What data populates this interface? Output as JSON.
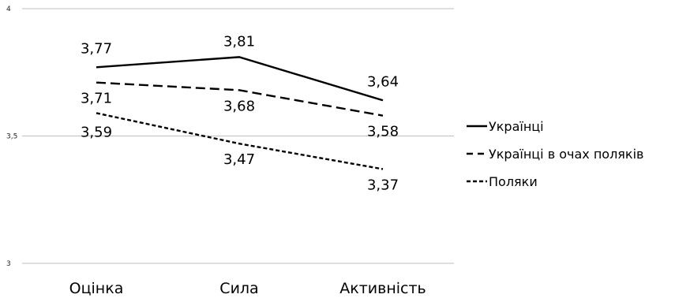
{
  "chart_data": {
    "type": "line",
    "categories": [
      "Оцінка",
      "Сила",
      "Активність"
    ],
    "series": [
      {
        "name": "Українці",
        "values": [
          3.77,
          3.81,
          3.64
        ],
        "labels": [
          "3,77",
          "3,81",
          "3,64"
        ],
        "dash": "solid"
      },
      {
        "name": "Українці в очах поляків",
        "values": [
          3.71,
          3.68,
          3.58
        ],
        "labels": [
          "3,71",
          "3,68",
          "3,58"
        ],
        "dash": "dashed"
      },
      {
        "name": "Поляки",
        "values": [
          3.59,
          3.47,
          3.37
        ],
        "labels": [
          "3,59",
          "3,47",
          "3,37"
        ],
        "dash": "dotted"
      }
    ],
    "ylim": [
      3,
      4
    ],
    "yticks": [
      {
        "value": 4,
        "label": "4"
      },
      {
        "value": 3.5,
        "label": "3,5"
      },
      {
        "value": 3,
        "label": "3"
      }
    ],
    "grid": true,
    "legend": "right",
    "title": "",
    "xlabel": "",
    "ylabel": "",
    "line_color": "#000000",
    "grid_color": "#bfbfbf"
  }
}
